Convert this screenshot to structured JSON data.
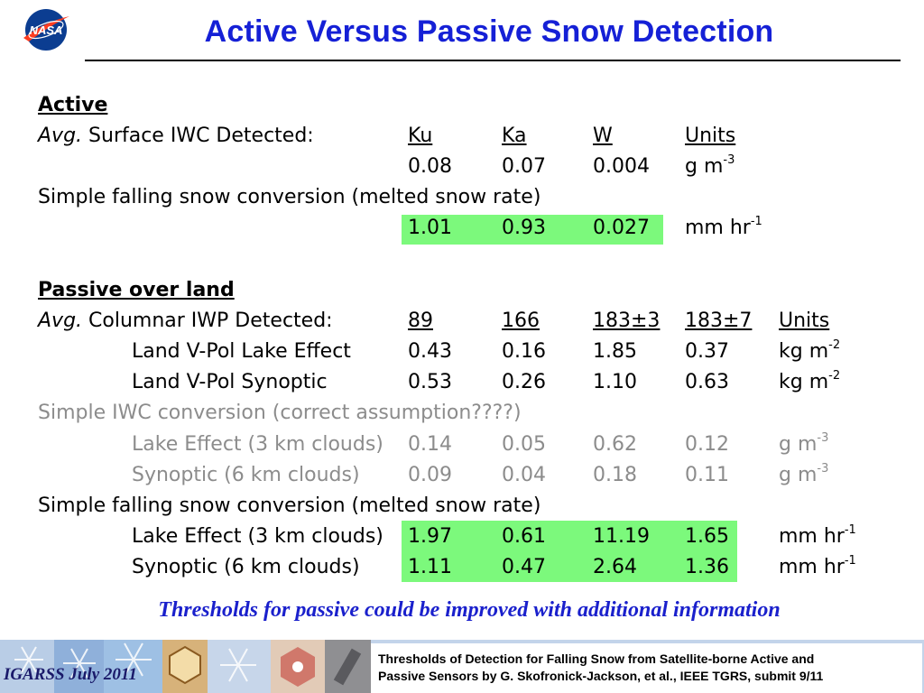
{
  "title": "Active Versus Passive Snow Detection",
  "logo_text": "NASA",
  "active": {
    "heading": "Active",
    "avg_label": "Avg.",
    "detected_label": "Surface IWC Detected:",
    "columns": [
      "Ku",
      "Ka",
      "W",
      "Units"
    ],
    "iwc_values": [
      "0.08",
      "0.07",
      "0.004"
    ],
    "iwc_unit": "g m",
    "iwc_unit_exp": "-3",
    "conversion_label": "Simple falling snow conversion (melted snow rate)",
    "rate_values": [
      "1.01",
      "0.93",
      "0.027"
    ],
    "rate_unit": "mm hr",
    "rate_unit_exp": "-1"
  },
  "passive": {
    "heading": "Passive over land",
    "avg_label": "Avg.",
    "detected_label": "Columnar IWP Detected:",
    "columns": [
      "89",
      "166",
      "183±3",
      "183±7",
      "Units"
    ],
    "iwp_rows": [
      {
        "label": "Land V-Pol Lake Effect",
        "values": [
          "0.43",
          "0.16",
          "1.85",
          "0.37"
        ],
        "unit": "kg m",
        "exp": "-2"
      },
      {
        "label": "Land V-Pol Synoptic",
        "values": [
          "0.53",
          "0.26",
          "1.10",
          "0.63"
        ],
        "unit": "kg m",
        "exp": "-2"
      }
    ],
    "iwc_conversion_label": "Simple IWC conversion (correct assumption????)",
    "iwc_rows": [
      {
        "label": "Lake Effect (3 km clouds)",
        "values": [
          "0.14",
          "0.05",
          "0.62",
          "0.12"
        ],
        "unit": "g m",
        "exp": "-3"
      },
      {
        "label": "Synoptic (6 km clouds)",
        "values": [
          "0.09",
          "0.04",
          "0.18",
          "0.11"
        ],
        "unit": "g m",
        "exp": "-3"
      }
    ],
    "snow_conversion_label": "Simple falling snow conversion (melted snow rate)",
    "rate_rows": [
      {
        "label": "Lake Effect (3 km clouds)",
        "values": [
          "1.97",
          "0.61",
          "11.19",
          "1.65"
        ],
        "unit": "mm hr",
        "exp": "-1"
      },
      {
        "label": "Synoptic (6 km clouds)",
        "values": [
          "1.11",
          "0.47",
          "2.64",
          "1.36"
        ],
        "unit": "mm hr",
        "exp": "-1"
      }
    ]
  },
  "note": "Thresholds for passive could be improved with additional information",
  "footer": {
    "conference": "IGARSS July 2011",
    "reference_line1": "Thresholds of Detection for Falling Snow from Satellite-borne Active and",
    "reference_line2": "Passive Sensors by G. Skofronick-Jackson, et al., IEEE TGRS, submit 9/11"
  },
  "colors": {
    "title": "#1520d6",
    "highlight": "#7cf97c",
    "gray_text": "#8c8c8c",
    "note": "#1a20cc"
  }
}
